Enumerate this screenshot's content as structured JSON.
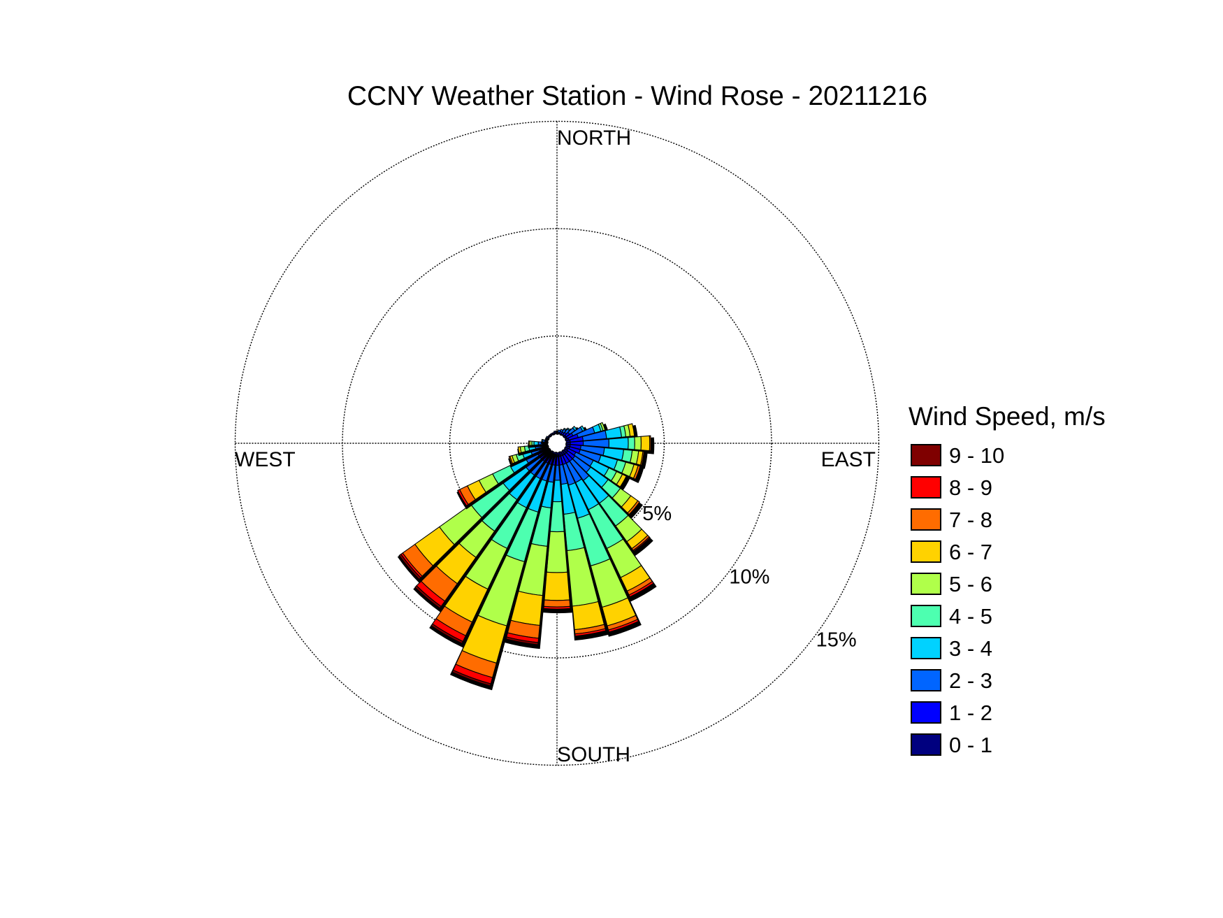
{
  "chart_data": {
    "type": "wind_rose",
    "title": "CCNY Weather Station - Wind Rose - 20211216",
    "compass_labels": {
      "north": "NORTH",
      "east": "EAST",
      "south": "SOUTH",
      "west": "WEST"
    },
    "ring_labels": [
      "5%",
      "10%",
      "15%"
    ],
    "rings": [
      5,
      10,
      15
    ],
    "legend_title": "Wind Speed, m/s",
    "bins": [
      {
        "label": "0 - 1",
        "color": "#00007f"
      },
      {
        "label": "1 - 2",
        "color": "#0000ff"
      },
      {
        "label": "2 - 3",
        "color": "#0065ff"
      },
      {
        "label": "3 - 4",
        "color": "#00d2ff"
      },
      {
        "label": "4 - 5",
        "color": "#4dffb0"
      },
      {
        "label": "5 - 6",
        "color": "#b0ff4a"
      },
      {
        "label": "6 - 7",
        "color": "#ffd200"
      },
      {
        "label": "7 - 8",
        "color": "#ff6c00"
      },
      {
        "label": "8 - 9",
        "color": "#ff0000"
      },
      {
        "label": "9 - 10",
        "color": "#7f0000"
      }
    ],
    "sectors": [
      {
        "direction": 0,
        "values": [
          0.05,
          0.05,
          0.05,
          0,
          0,
          0,
          0,
          0,
          0,
          0
        ]
      },
      {
        "direction": 10,
        "values": [
          0.05,
          0.05,
          0.1,
          0,
          0,
          0,
          0,
          0,
          0,
          0
        ]
      },
      {
        "direction": 20,
        "values": [
          0.05,
          0.1,
          0.1,
          0,
          0,
          0,
          0,
          0,
          0,
          0
        ]
      },
      {
        "direction": 30,
        "values": [
          0.05,
          0.1,
          0.15,
          0.05,
          0,
          0,
          0,
          0,
          0,
          0
        ]
      },
      {
        "direction": 40,
        "values": [
          0.05,
          0.15,
          0.2,
          0.05,
          0,
          0,
          0,
          0,
          0,
          0
        ]
      },
      {
        "direction": 50,
        "values": [
          0.1,
          0.2,
          0.3,
          0.1,
          0,
          0,
          0,
          0,
          0,
          0
        ]
      },
      {
        "direction": 60,
        "values": [
          0.1,
          0.3,
          0.5,
          0.1,
          0,
          0,
          0,
          0,
          0,
          0
        ]
      },
      {
        "direction": 70,
        "values": [
          0.15,
          0.45,
          0.8,
          0.3,
          0.1,
          0.1,
          0,
          0,
          0,
          0
        ]
      },
      {
        "direction": 80,
        "values": [
          0.2,
          0.6,
          1.1,
          0.7,
          0.2,
          0.2,
          0.2,
          0,
          0,
          0
        ]
      },
      {
        "direction": 90,
        "values": [
          0.2,
          0.6,
          1.2,
          0.9,
          0.3,
          0.3,
          0.4,
          0.05,
          0,
          0
        ]
      },
      {
        "direction": 100,
        "values": [
          0.2,
          0.5,
          1.1,
          0.9,
          0.4,
          0.3,
          0.2,
          0.05,
          0,
          0
        ]
      },
      {
        "direction": 110,
        "values": [
          0.2,
          0.5,
          1.0,
          0.8,
          0.4,
          0.4,
          0.2,
          0.1,
          0,
          0
        ]
      },
      {
        "direction": 120,
        "values": [
          0.15,
          0.4,
          0.9,
          0.8,
          0.4,
          0.3,
          0.2,
          0,
          0,
          0
        ]
      },
      {
        "direction": 130,
        "values": [
          0.2,
          0.4,
          0.9,
          1.0,
          0.7,
          0.6,
          0.4,
          0.1,
          0,
          0
        ]
      },
      {
        "direction": 140,
        "values": [
          0.2,
          0.4,
          1.1,
          1.3,
          1.3,
          0.9,
          0.4,
          0.1,
          0.05,
          0
        ]
      },
      {
        "direction": 150,
        "values": [
          0.2,
          0.4,
          1.0,
          1.4,
          2.0,
          1.5,
          0.7,
          0.2,
          0.1,
          0
        ]
      },
      {
        "direction": 160,
        "values": [
          0.2,
          0.4,
          1.0,
          1.6,
          2.3,
          2.0,
          0.9,
          0.2,
          0.1,
          0
        ]
      },
      {
        "direction": 170,
        "values": [
          0.2,
          0.4,
          0.9,
          1.4,
          1.7,
          2.6,
          1.1,
          0.2,
          0.1,
          0
        ]
      },
      {
        "direction": 180,
        "values": [
          0.2,
          0.4,
          0.7,
          1.0,
          1.4,
          1.9,
          1.3,
          0.3,
          0.1,
          0
        ]
      },
      {
        "direction": 190,
        "values": [
          0.2,
          0.4,
          0.8,
          1.2,
          1.8,
          2.3,
          1.4,
          0.6,
          0.2,
          0.1
        ]
      },
      {
        "direction": 200,
        "values": [
          0.2,
          0.4,
          0.8,
          1.5,
          2.4,
          3.1,
          1.8,
          0.7,
          0.3,
          0.1
        ]
      },
      {
        "direction": 210,
        "values": [
          0.2,
          0.4,
          0.8,
          1.5,
          2.1,
          2.1,
          1.7,
          0.7,
          0.3,
          0.1
        ]
      },
      {
        "direction": 220,
        "values": [
          0.2,
          0.4,
          0.8,
          1.4,
          1.8,
          1.5,
          1.5,
          1.0,
          0.3,
          0.1
        ]
      },
      {
        "direction": 230,
        "values": [
          0.2,
          0.4,
          0.8,
          1.3,
          1.8,
          1.8,
          1.4,
          0.7,
          0.1,
          0.1
        ]
      },
      {
        "direction": 240,
        "values": [
          0.2,
          0.4,
          0.6,
          0.8,
          0.9,
          0.7,
          0.6,
          0.4,
          0.1,
          0
        ]
      },
      {
        "direction": 250,
        "values": [
          0.15,
          0.3,
          0.4,
          0.4,
          0.3,
          0.2,
          0.1,
          0.05,
          0,
          0
        ]
      },
      {
        "direction": 260,
        "values": [
          0.1,
          0.2,
          0.3,
          0.3,
          0.2,
          0.2,
          0.1,
          0,
          0,
          0
        ]
      },
      {
        "direction": 270,
        "values": [
          0.1,
          0.15,
          0.2,
          0.2,
          0.1,
          0.1,
          0.05,
          0,
          0,
          0
        ]
      },
      {
        "direction": 280,
        "values": [
          0.05,
          0.1,
          0.1,
          0.05,
          0,
          0,
          0,
          0,
          0,
          0
        ]
      },
      {
        "direction": 290,
        "values": [
          0.05,
          0.05,
          0.05,
          0,
          0,
          0,
          0,
          0,
          0,
          0
        ]
      },
      {
        "direction": 300,
        "values": [
          0.05,
          0.05,
          0.05,
          0,
          0,
          0,
          0,
          0,
          0,
          0
        ]
      },
      {
        "direction": 310,
        "values": [
          0.05,
          0.05,
          0,
          0,
          0,
          0,
          0,
          0,
          0,
          0
        ]
      },
      {
        "direction": 320,
        "values": [
          0.05,
          0.05,
          0,
          0,
          0,
          0,
          0,
          0,
          0,
          0
        ]
      },
      {
        "direction": 330,
        "values": [
          0.05,
          0.05,
          0,
          0,
          0,
          0,
          0,
          0,
          0,
          0
        ]
      },
      {
        "direction": 340,
        "values": [
          0.05,
          0.05,
          0,
          0,
          0,
          0,
          0,
          0,
          0,
          0
        ]
      },
      {
        "direction": 350,
        "values": [
          0.05,
          0.05,
          0.05,
          0,
          0,
          0,
          0,
          0,
          0,
          0
        ]
      }
    ]
  }
}
